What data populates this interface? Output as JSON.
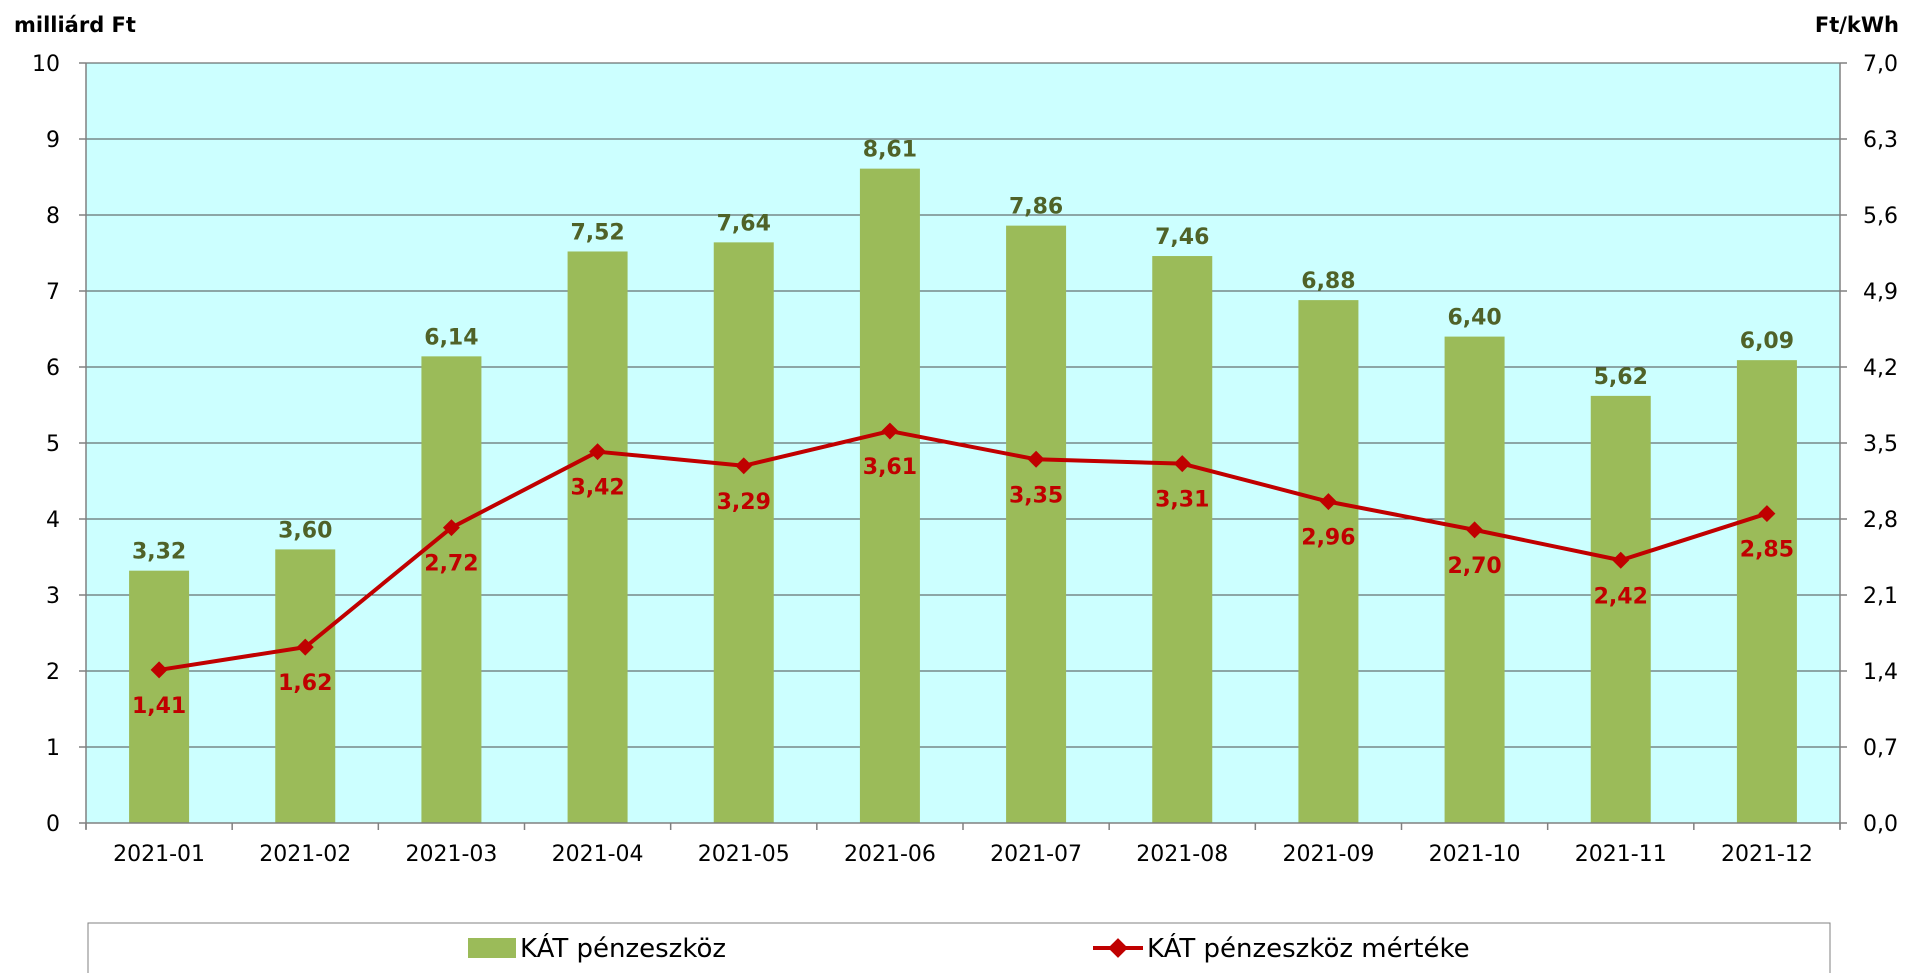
{
  "chart_data": {
    "type": "bar",
    "categories": [
      "2021-01",
      "2021-02",
      "2021-03",
      "2021-04",
      "2021-05",
      "2021-06",
      "2021-07",
      "2021-08",
      "2021-09",
      "2021-10",
      "2021-11",
      "2021-12"
    ],
    "series": [
      {
        "name": "KÁT pénzeszköz",
        "type": "bar",
        "axis": "left",
        "color": "#9bbb59",
        "values": [
          3.32,
          3.6,
          6.14,
          7.52,
          7.64,
          8.61,
          7.86,
          7.46,
          6.88,
          6.4,
          5.62,
          6.09
        ],
        "labels": [
          "3,32",
          "3,60",
          "6,14",
          "7,52",
          "7,64",
          "8,61",
          "7,86",
          "7,46",
          "6,88",
          "6,40",
          "5,62",
          "6,09"
        ]
      },
      {
        "name": "KÁT pénzeszköz mértéke",
        "type": "line",
        "axis": "right",
        "color": "#c00000",
        "values": [
          1.41,
          1.62,
          2.72,
          3.42,
          3.29,
          3.61,
          3.35,
          3.31,
          2.96,
          2.7,
          2.42,
          2.85
        ],
        "labels": [
          "1,41",
          "1,62",
          "2,72",
          "3,42",
          "3,29",
          "3,61",
          "3,35",
          "3,31",
          "2,96",
          "2,70",
          "2,42",
          "2,85"
        ]
      }
    ],
    "ylabel_left": "milliárd Ft",
    "ylabel_right": "Ft/kWh",
    "ylim_left": [
      0,
      10
    ],
    "ylim_right": [
      0,
      7
    ],
    "yticks_left": [
      "0",
      "1",
      "2",
      "3",
      "4",
      "5",
      "6",
      "7",
      "8",
      "9",
      "10"
    ],
    "yticks_right": [
      "0,0",
      "0,7",
      "1,4",
      "2,1",
      "2,8",
      "3,5",
      "4,2",
      "4,9",
      "5,6",
      "6,3",
      "7,0"
    ],
    "grid": true,
    "legend_position": "bottom",
    "plot_background": "#ccffff"
  }
}
